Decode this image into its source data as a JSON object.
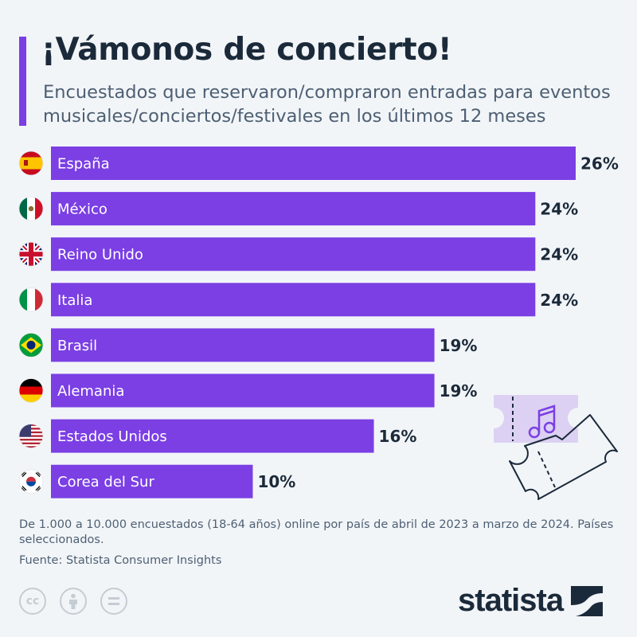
{
  "title": "¡Vámonos de concierto!",
  "subtitle": "Encuestados que reservaron/compraron entradas para eventos musicales/conciertos/festivales en los últimos 12 meses",
  "colors": {
    "bar": "#7b3fe4",
    "accent": "#7b3fe4",
    "text": "#1b2a3a",
    "background": "#f2f5f8"
  },
  "chart_data": {
    "type": "bar",
    "orientation": "horizontal",
    "categories": [
      "España",
      "México",
      "Reino Unido",
      "Italia",
      "Brasil",
      "Alemania",
      "Estados Unidos",
      "Corea del Sur"
    ],
    "values": [
      26,
      24,
      24,
      24,
      19,
      19,
      16,
      10
    ],
    "value_labels": [
      "26%",
      "24%",
      "24%",
      "24%",
      "19%",
      "19%",
      "16%",
      "10%"
    ],
    "title": "¡Vámonos de concierto!",
    "xlabel": "",
    "ylabel": "",
    "xlim": [
      0,
      26
    ],
    "grid": false,
    "legend": "none"
  },
  "flags": [
    "spain-flag-icon",
    "mexico-flag-icon",
    "uk-flag-icon",
    "italy-flag-icon",
    "brazil-flag-icon",
    "germany-flag-icon",
    "usa-flag-icon",
    "south-korea-flag-icon"
  ],
  "footer": {
    "note": "De 1.000 a 10.000 encuestados (18-64 años) online por país de abril de 2023 a marzo de 2024. Países seleccionados.",
    "source": "Fuente: Statista Consumer Insights",
    "license_icons": [
      "cc-icon",
      "attribution-icon",
      "no-derivatives-icon"
    ],
    "license_cc_text": "cc",
    "brand": "statista"
  }
}
